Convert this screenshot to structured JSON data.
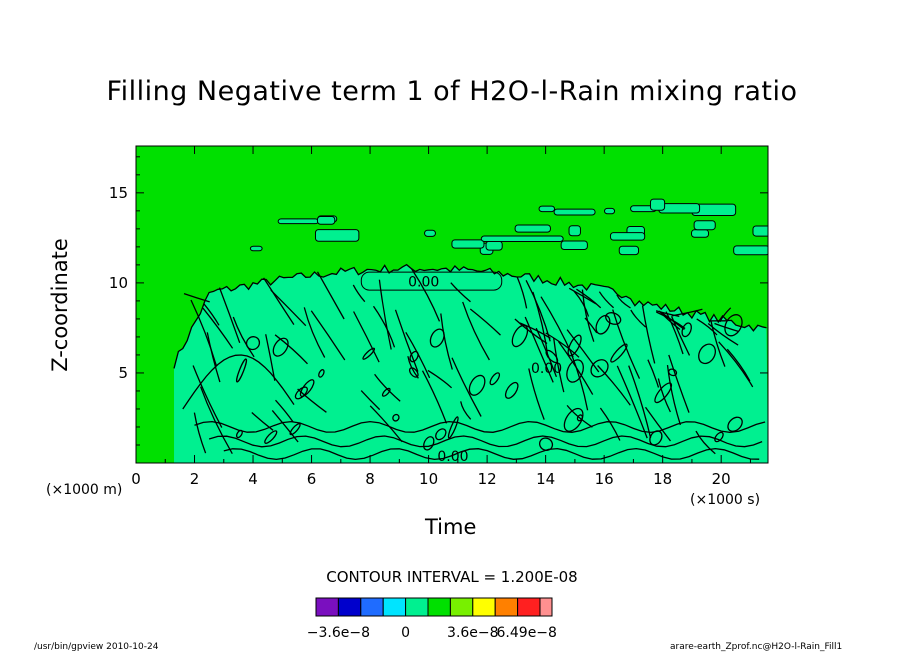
{
  "chart_data": {
    "type": "heatmap",
    "title": "Filling Negative term 1 of H2O-l-Rain mixing ratio",
    "xlabel": "Time",
    "ylabel": "Z-coordinate",
    "x_unit": "(×1000 s)",
    "y_unit": "(×1000 m)",
    "xlim": [
      0,
      21.6
    ],
    "ylim": [
      0,
      17.6
    ],
    "xticks": [
      0,
      2,
      4,
      6,
      8,
      10,
      12,
      14,
      16,
      18,
      20
    ],
    "yticks": [
      5,
      10,
      15
    ],
    "contour_interval": "CONTOUR INTERVAL = 1.200E-08",
    "contour_labels": [
      "0.00",
      "0.00",
      "0.00"
    ],
    "colorbar": {
      "colors": [
        "#7a0fbf",
        "#0000cc",
        "#1f6cff",
        "#00e4ff",
        "#00f090",
        "#00e000",
        "#78f000",
        "#ffff00",
        "#ff8000",
        "#ff2020",
        "#ff9090"
      ],
      "labels": [
        "−3.6e−8",
        "0",
        "3.6e−8",
        "6.49e−8"
      ],
      "label_values": [
        -3.6e-08,
        0,
        3.6e-08,
        6.49e-08
      ]
    },
    "background_color": "#00e000",
    "region_color": "#00f090"
  },
  "footer": {
    "left": "/usr/bin/gpview  2010-10-24",
    "right": "arare-earth_Zprof.nc@H2O-l-Rain_Fill1"
  }
}
